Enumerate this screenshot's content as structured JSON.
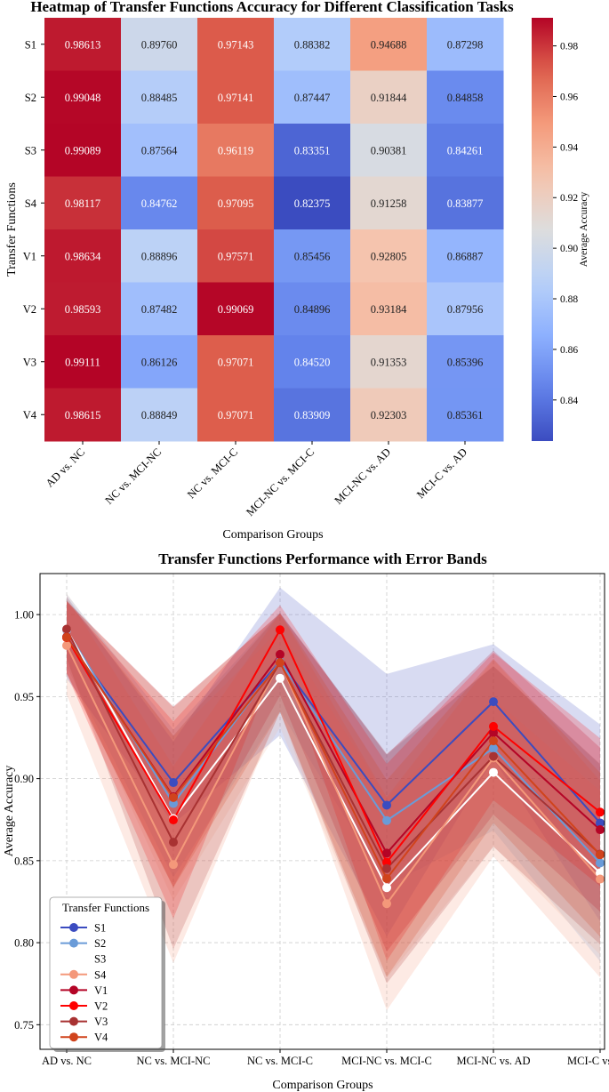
{
  "chart_data": [
    {
      "type": "heatmap",
      "title": "Heatmap of Transfer Functions Accuracy for Different Classification Tasks",
      "xlabel": "Comparison Groups",
      "ylabel": "Transfer Functions",
      "x_categories": [
        "AD vs. NC",
        "NC vs. MCI-NC",
        "NC vs. MCI-C",
        "MCI-NC vs. MCI-C",
        "MCI-NC vs. AD",
        "MCI-C vs. AD"
      ],
      "y_categories": [
        "S1",
        "S2",
        "S3",
        "S4",
        "V1",
        "V2",
        "V3",
        "V4"
      ],
      "values": [
        [
          0.98613,
          0.8976,
          0.97143,
          0.88382,
          0.94688,
          0.87298
        ],
        [
          0.99048,
          0.88485,
          0.97141,
          0.87447,
          0.91844,
          0.84858
        ],
        [
          0.99089,
          0.87564,
          0.96119,
          0.83351,
          0.90381,
          0.84261
        ],
        [
          0.98117,
          0.84762,
          0.97095,
          0.82375,
          0.91258,
          0.83877
        ],
        [
          0.98634,
          0.88896,
          0.97571,
          0.85456,
          0.92805,
          0.86887
        ],
        [
          0.98593,
          0.87482,
          0.99069,
          0.84896,
          0.93184,
          0.87956
        ],
        [
          0.99111,
          0.86126,
          0.97071,
          0.8452,
          0.91353,
          0.85396
        ],
        [
          0.98615,
          0.88849,
          0.97071,
          0.83909,
          0.92303,
          0.85361
        ]
      ],
      "cell_labels": [
        [
          "0.98613",
          "0.89760",
          "0.97143",
          "0.88382",
          "0.94688",
          "0.87298"
        ],
        [
          "0.99048",
          "0.88485",
          "0.97141",
          "0.87447",
          "0.91844",
          "0.84858"
        ],
        [
          "0.99089",
          "0.87564",
          "0.96119",
          "0.83351",
          "0.90381",
          "0.84261"
        ],
        [
          "0.98117",
          "0.84762",
          "0.97095",
          "0.82375",
          "0.91258",
          "0.83877"
        ],
        [
          "0.98634",
          "0.88896",
          "0.97571",
          "0.85456",
          "0.92805",
          "0.86887"
        ],
        [
          "0.98593",
          "0.87482",
          "0.99069",
          "0.84896",
          "0.93184",
          "0.87956"
        ],
        [
          "0.99111",
          "0.86126",
          "0.97071",
          "0.84520",
          "0.91353",
          "0.85396"
        ],
        [
          "0.98615",
          "0.88849",
          "0.97071",
          "0.83909",
          "0.92303",
          "0.85361"
        ]
      ],
      "colormap": "coolwarm",
      "vmin": 0.82375,
      "vmax": 0.99111,
      "colorbar": {
        "label": "Average Accuracy",
        "ticks": [
          0.84,
          0.86,
          0.88,
          0.9,
          0.92,
          0.94,
          0.96,
          0.98
        ],
        "tick_labels": [
          "0.84",
          "0.86",
          "0.88",
          "0.90",
          "0.92",
          "0.94",
          "0.96",
          "0.98"
        ]
      }
    },
    {
      "type": "line",
      "title": "Transfer Functions Performance with Error Bands",
      "xlabel": "Comparison Groups",
      "ylabel": "Average Accuracy",
      "categories": [
        "AD vs. NC",
        "NC vs. MCI-NC",
        "NC vs. MCI-C",
        "MCI-NC vs. MCI-C",
        "MCI-NC vs. AD",
        "MCI-C vs. AD"
      ],
      "ylim": [
        0.735,
        1.025
      ],
      "yticks": [
        0.75,
        0.8,
        0.85,
        0.9,
        0.95,
        1.0
      ],
      "ytick_labels": [
        "0.75",
        "0.80",
        "0.85",
        "0.90",
        "0.95",
        "1.00"
      ],
      "grid": true,
      "legend": {
        "title": "Transfer Functions",
        "placement": "lower-left"
      },
      "series": [
        {
          "name": "S1",
          "color": "#3b4cc0",
          "values": [
            0.98613,
            0.8976,
            0.97143,
            0.88382,
            0.94688,
            0.87298
          ],
          "band": [
            0.025,
            0.025,
            0.045,
            0.08,
            0.035,
            0.06
          ]
        },
        {
          "name": "S2",
          "color": "#6a9bd8",
          "values": [
            0.99048,
            0.88485,
            0.97141,
            0.87447,
            0.91844,
            0.84858
          ],
          "band": [
            0.022,
            0.045,
            0.03,
            0.04,
            0.05,
            0.06
          ]
        },
        {
          "name": "S3",
          "color": "#ffffff",
          "values": [
            0.99089,
            0.87564,
            0.96119,
            0.83351,
            0.90381,
            0.84261
          ],
          "band": [
            0.022,
            0.05,
            0.03,
            0.055,
            0.045,
            0.05
          ]
        },
        {
          "name": "S4",
          "color": "#f4987a",
          "values": [
            0.98117,
            0.84762,
            0.97095,
            0.82375,
            0.91258,
            0.83877
          ],
          "band": [
            0.03,
            0.06,
            0.03,
            0.065,
            0.06,
            0.06
          ]
        },
        {
          "name": "V1",
          "color": "#b40426",
          "values": [
            0.98634,
            0.88896,
            0.97571,
            0.85456,
            0.92805,
            0.86887
          ],
          "band": [
            0.022,
            0.055,
            0.025,
            0.06,
            0.05,
            0.05
          ]
        },
        {
          "name": "V2",
          "color": "#ff0000",
          "values": [
            0.98593,
            0.87482,
            0.99069,
            0.84896,
            0.93184,
            0.87956
          ],
          "band": [
            0.022,
            0.06,
            0.015,
            0.06,
            0.045,
            0.045
          ]
        },
        {
          "name": "V3",
          "color": "#a83232",
          "values": [
            0.99111,
            0.86126,
            0.97071,
            0.8452,
            0.91353,
            0.85396
          ],
          "band": [
            0.018,
            0.065,
            0.03,
            0.07,
            0.055,
            0.055
          ]
        },
        {
          "name": "V4",
          "color": "#d0431c",
          "values": [
            0.98615,
            0.88849,
            0.97071,
            0.83909,
            0.92303,
            0.85361
          ],
          "band": [
            0.022,
            0.055,
            0.03,
            0.06,
            0.05,
            0.05
          ]
        }
      ]
    }
  ]
}
